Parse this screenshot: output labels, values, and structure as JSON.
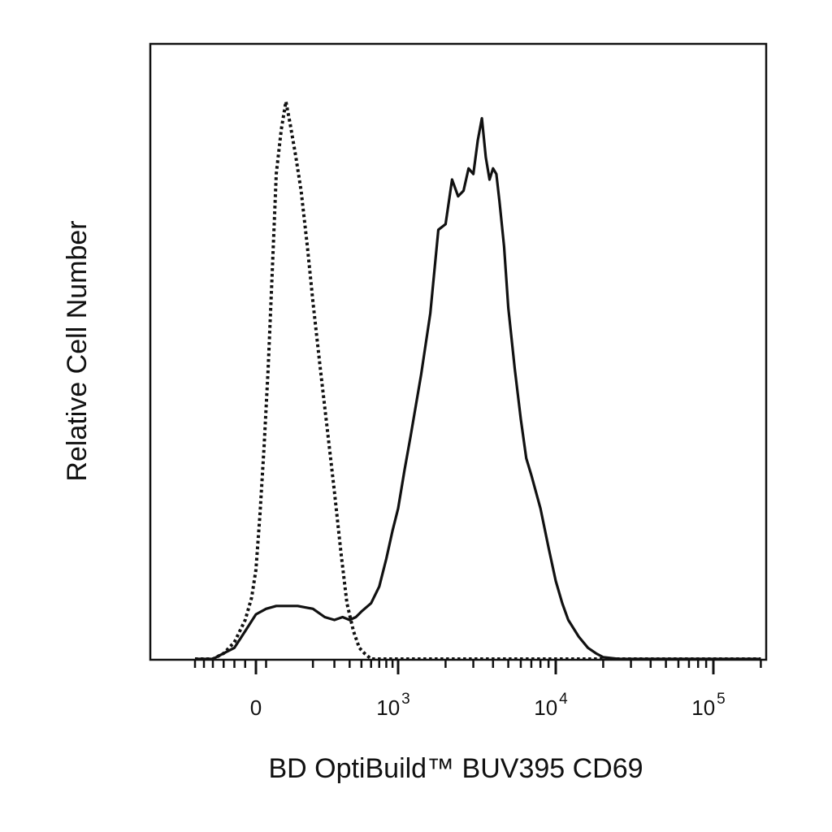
{
  "chart_data": {
    "type": "line",
    "title": "",
    "xlabel": "BD OptiBuild™ BUV395 CD69",
    "ylabel": "Relative Cell Number",
    "x_scale": "biexponential",
    "xlim": [
      -300,
      200000
    ],
    "ylim": [
      0,
      1
    ],
    "grid": false,
    "legend": "none",
    "x_ticks": [
      {
        "value": 0,
        "label": "0",
        "exp": ""
      },
      {
        "value": 1000,
        "label": "10",
        "exp": "3"
      },
      {
        "value": 10000,
        "label": "10",
        "exp": "4"
      },
      {
        "value": 100000,
        "label": "10",
        "exp": "5"
      }
    ],
    "series": [
      {
        "style": "dotted",
        "color": "#111111",
        "x": [
          -300,
          -200,
          -150,
          -100,
          -50,
          -20,
          0,
          20,
          40,
          60,
          75,
          90,
          100,
          110,
          120,
          130,
          145,
          160,
          180,
          200,
          230,
          260,
          300,
          340,
          380,
          430,
          480,
          530,
          600,
          700,
          900,
          1200,
          2000,
          5000,
          20000,
          200000
        ],
        "y": [
          0.0,
          0.0,
          0.01,
          0.03,
          0.07,
          0.11,
          0.16,
          0.26,
          0.38,
          0.52,
          0.65,
          0.78,
          0.87,
          0.95,
          1.0,
          0.96,
          0.9,
          0.84,
          0.74,
          0.64,
          0.52,
          0.42,
          0.3,
          0.19,
          0.1,
          0.05,
          0.02,
          0.01,
          0.0,
          0.0,
          0.0,
          0.0,
          0.0,
          0.0,
          0.0,
          0.0
        ]
      },
      {
        "style": "solid",
        "color": "#111111",
        "x": [
          -300,
          -200,
          -150,
          -100,
          -50,
          0,
          50,
          100,
          150,
          200,
          250,
          300,
          350,
          400,
          450,
          500,
          600,
          700,
          800,
          900,
          1000,
          1100,
          1200,
          1400,
          1600,
          1800,
          2000,
          2200,
          2400,
          2600,
          2800,
          3000,
          3200,
          3400,
          3600,
          3800,
          4000,
          4200,
          4400,
          4700,
          5000,
          5500,
          6000,
          6500,
          7000,
          8000,
          9000,
          10000,
          11000,
          12000,
          14000,
          16000,
          18000,
          20000,
          25000,
          30000,
          50000,
          100000,
          200000
        ],
        "y": [
          0.0,
          0.0,
          0.01,
          0.02,
          0.05,
          0.08,
          0.09,
          0.095,
          0.095,
          0.09,
          0.075,
          0.07,
          0.075,
          0.07,
          0.075,
          0.085,
          0.1,
          0.13,
          0.18,
          0.23,
          0.27,
          0.34,
          0.4,
          0.51,
          0.62,
          0.77,
          0.78,
          0.86,
          0.83,
          0.84,
          0.88,
          0.87,
          0.93,
          0.97,
          0.9,
          0.86,
          0.88,
          0.87,
          0.82,
          0.74,
          0.63,
          0.52,
          0.43,
          0.36,
          0.33,
          0.27,
          0.2,
          0.14,
          0.1,
          0.07,
          0.04,
          0.02,
          0.01,
          0.003,
          0.0,
          0.0,
          0.0,
          0.0,
          0.0
        ]
      }
    ]
  }
}
